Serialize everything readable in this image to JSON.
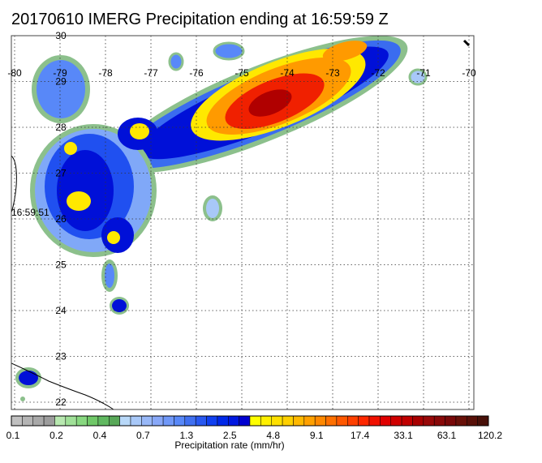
{
  "title": "20170610 IMERG Precipitation ending at 16:59:59 Z",
  "map": {
    "lon_labels": [
      -80,
      -79,
      -78,
      -77,
      -76,
      -75,
      -74,
      -73,
      -72,
      -71,
      -70
    ],
    "lat_labels": [
      30,
      29,
      28,
      27,
      26,
      25,
      24,
      23,
      22
    ],
    "time_label": "16:59:51"
  },
  "colorbar": {
    "title": "Precipitation rate (mm/hr)",
    "labels": [
      0.1,
      0.2,
      0.4,
      0.7,
      1.3,
      2.5,
      4.8,
      9.1,
      17.4,
      33.1,
      63.1,
      120.2
    ],
    "colors": [
      "#c0c0c0",
      "#b4b4b4",
      "#a8a8a8",
      "#9c9c9c",
      "#b8e8b0",
      "#a0e098",
      "#88d880",
      "#70c868",
      "#60b860",
      "#58a858",
      "#b8d8f8",
      "#a8c8f8",
      "#98b8f8",
      "#88a8f8",
      "#7098f8",
      "#5888f8",
      "#4070f0",
      "#2858f0",
      "#1040f0",
      "#0028e8",
      "#0018e0",
      "#0000d0",
      "#ffff00",
      "#fff000",
      "#ffe000",
      "#ffd000",
      "#ffb800",
      "#ffa000",
      "#ff8800",
      "#ff7000",
      "#ff5800",
      "#ff4000",
      "#ff2800",
      "#f01000",
      "#e00000",
      "#d00000",
      "#c00000",
      "#a80000",
      "#980808",
      "#880808",
      "#780808",
      "#681008",
      "#581008",
      "#481008"
    ]
  }
}
